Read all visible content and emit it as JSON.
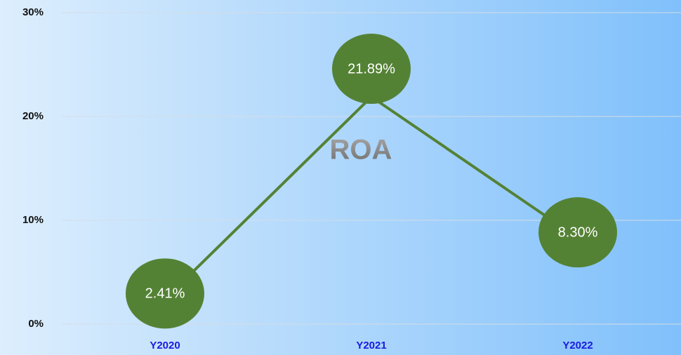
{
  "chart_data": {
    "type": "line",
    "title": "ROA",
    "categories": [
      "Y2020",
      "Y2021",
      "Y2022"
    ],
    "series": [
      {
        "name": "ROA",
        "color": "#548235",
        "values": [
          2.41,
          21.89,
          8.3
        ],
        "value_labels": [
          "2.41%",
          "21.89%",
          "8.30%"
        ]
      }
    ],
    "ylim": [
      0,
      30
    ],
    "yticks": [
      {
        "value": 0,
        "label": "0%"
      },
      {
        "value": 10,
        "label": "10%"
      },
      {
        "value": 20,
        "label": "20%"
      },
      {
        "value": 30,
        "label": "30%"
      }
    ],
    "grid": true
  }
}
